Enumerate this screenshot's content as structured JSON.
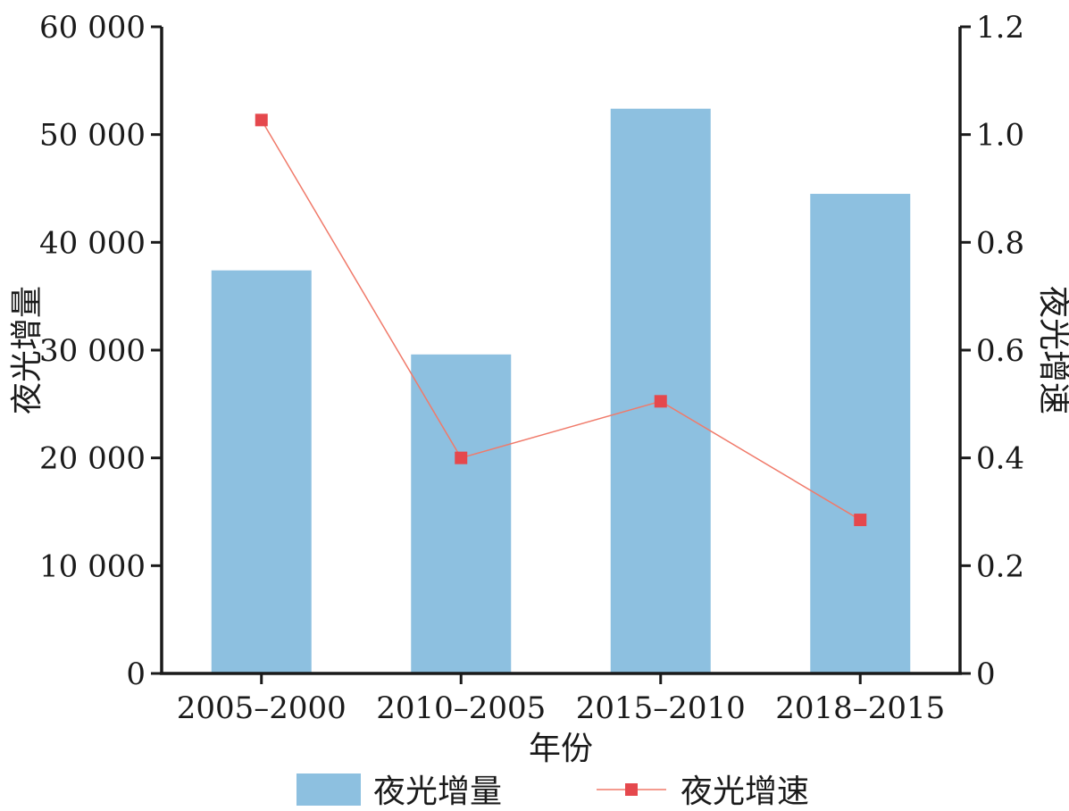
{
  "chart_data": {
    "type": "bar",
    "categories": [
      "2005–2000",
      "2010–2005",
      "2015–2010",
      "2018–2015"
    ],
    "series": [
      {
        "name": "夜光增量",
        "type": "bar",
        "axis": "left",
        "values": [
          37400,
          29600,
          52400,
          44500
        ]
      },
      {
        "name": "夜光增速",
        "type": "line",
        "axis": "right",
        "values": [
          1.027,
          0.4,
          0.505,
          0.285
        ]
      }
    ],
    "xlabel": "年份",
    "ylabel": "夜光增量",
    "y2label": "夜光增速",
    "ylim": [
      0,
      60000
    ],
    "y2lim": [
      0,
      1.2
    ],
    "yticks": [
      0,
      10000,
      20000,
      30000,
      40000,
      50000,
      60000
    ],
    "yticklabels": [
      "0",
      "10 000",
      "20 000",
      "30 000",
      "40 000",
      "50 000",
      "60 000"
    ],
    "y2ticks": [
      0,
      0.2,
      0.4,
      0.6,
      0.8,
      1.0,
      1.2
    ],
    "y2ticklabels": [
      "0",
      "0.2",
      "0.4",
      "0.6",
      "0.8",
      "1.0",
      "1.2"
    ],
    "grid": false,
    "legend": "bottom",
    "colors": {
      "bar": "#8dc0e0",
      "line": "#f07a6a",
      "marker": "#e5484d",
      "axis": "#1a1a1a"
    }
  }
}
